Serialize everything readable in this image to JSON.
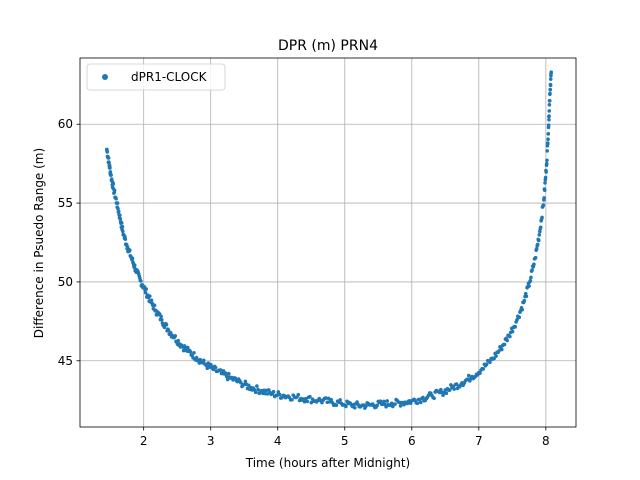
{
  "chart_data": {
    "type": "scatter",
    "title": "DPR (m) PRN4",
    "xlabel": "Time (hours after Midnight)",
    "ylabel": "Difference in Psuedo Range (m)",
    "xlim": [
      1.05,
      8.45
    ],
    "ylim": [
      40.8,
      64.2
    ],
    "xticks": [
      2,
      3,
      4,
      5,
      6,
      7,
      8
    ],
    "yticks": [
      45,
      50,
      55,
      60
    ],
    "grid": true,
    "legend_position": "top-left",
    "series": [
      {
        "name": "dPR1-CLOCK",
        "color": "#1f77b4",
        "x": [
          1.45,
          1.48,
          1.51,
          1.55,
          1.6,
          1.65,
          1.7,
          1.76,
          1.82,
          1.88,
          1.95,
          2.02,
          2.1,
          2.18,
          2.27,
          2.36,
          2.46,
          2.56,
          2.67,
          2.79,
          2.91,
          3.03,
          3.16,
          3.3,
          3.45,
          3.6,
          3.76,
          3.92,
          4.08,
          4.25,
          4.42,
          4.6,
          4.78,
          4.95,
          5.1,
          5.25,
          5.4,
          5.55,
          5.7,
          5.85,
          6.0,
          6.15,
          6.3,
          6.45,
          6.6,
          6.75,
          6.9,
          7.05,
          7.2,
          7.33,
          7.45,
          7.57,
          7.67,
          7.76,
          7.84,
          7.91,
          7.97,
          8.01,
          8.04,
          8.06,
          8.08
        ],
        "y": [
          58.4,
          57.6,
          56.8,
          55.9,
          55.0,
          54.0,
          53.0,
          52.2,
          51.5,
          50.8,
          50.1,
          49.5,
          48.8,
          48.2,
          47.6,
          47.0,
          46.5,
          46.0,
          45.6,
          45.2,
          44.8,
          44.5,
          44.2,
          43.9,
          43.6,
          43.3,
          43.1,
          42.9,
          42.8,
          42.7,
          42.6,
          42.5,
          42.4,
          42.3,
          42.2,
          42.15,
          42.2,
          42.25,
          42.3,
          42.35,
          42.45,
          42.6,
          42.8,
          43.0,
          43.3,
          43.6,
          44.0,
          44.5,
          45.1,
          45.8,
          46.6,
          47.6,
          48.7,
          50.0,
          51.5,
          53.2,
          55.2,
          57.4,
          59.8,
          61.9,
          63.3
        ]
      }
    ]
  }
}
